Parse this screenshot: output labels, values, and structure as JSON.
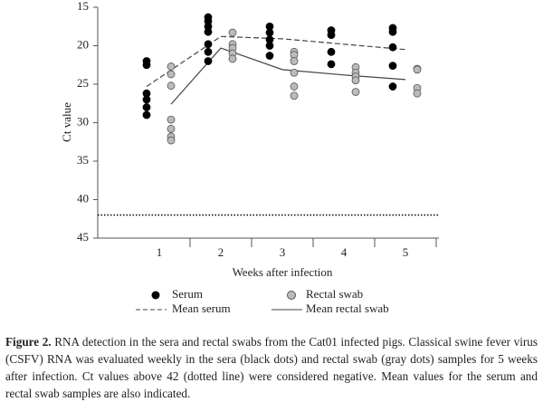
{
  "chart_data": {
    "type": "dot-strip",
    "y_label": "Ct value",
    "x_label": "Weeks after infection",
    "categories": [
      "1",
      "2",
      "3",
      "4",
      "5"
    ],
    "ylim": [
      15,
      45
    ],
    "yticks": [
      15,
      20,
      25,
      30,
      35,
      40,
      45
    ],
    "y_inverted": true,
    "cutoff": 42,
    "series": [
      {
        "name": "Serum",
        "color": "#000000",
        "values": [
          [
            22,
            22.5,
            26.2,
            27,
            28,
            29
          ],
          [
            16.3,
            16.8,
            17.5,
            18.2,
            19.8,
            20.8,
            22
          ],
          [
            17.5,
            18.3,
            19.2,
            20,
            21.3
          ],
          [
            18,
            18.6,
            20.8,
            22.4
          ],
          [
            17.7,
            18.2,
            20.2,
            22.6,
            25.3
          ]
        ]
      },
      {
        "name": "Rectal swab",
        "color": "#bbbbbb",
        "values": [
          [
            22.7,
            23.7,
            25.2,
            29.6,
            30.8,
            31.8,
            32.3
          ],
          [
            18.3,
            19.8,
            20.3,
            21,
            21.7
          ],
          [
            20.8,
            21.2,
            22,
            23.5,
            25.3,
            26.5
          ],
          [
            22.8,
            23.5,
            24,
            24.5,
            26
          ],
          [
            23,
            23.1,
            25.5,
            26.2
          ]
        ]
      }
    ],
    "means": [
      {
        "name": "Mean serum",
        "color": "#444444",
        "dashed": true,
        "values": [
          25.3,
          18.8,
          19.1,
          19.8,
          20.5
        ]
      },
      {
        "name": "Mean rectal swab",
        "color": "#444444",
        "dashed": false,
        "values": [
          27.6,
          20.3,
          23.1,
          23.8,
          24.4
        ]
      }
    ]
  },
  "caption": {
    "label": "Figure 2.",
    "text": "RNA detection in the sera and rectal swabs from the Cat01 infected pigs. Classical swine fever virus (CSFV) RNA was evaluated weekly in the sera (black dots) and rectal swab (gray dots) samples for 5 weeks after infection. Ct values above 42 (dotted line) were considered negative. Mean values for the serum and rectal swab samples are also indicated."
  }
}
